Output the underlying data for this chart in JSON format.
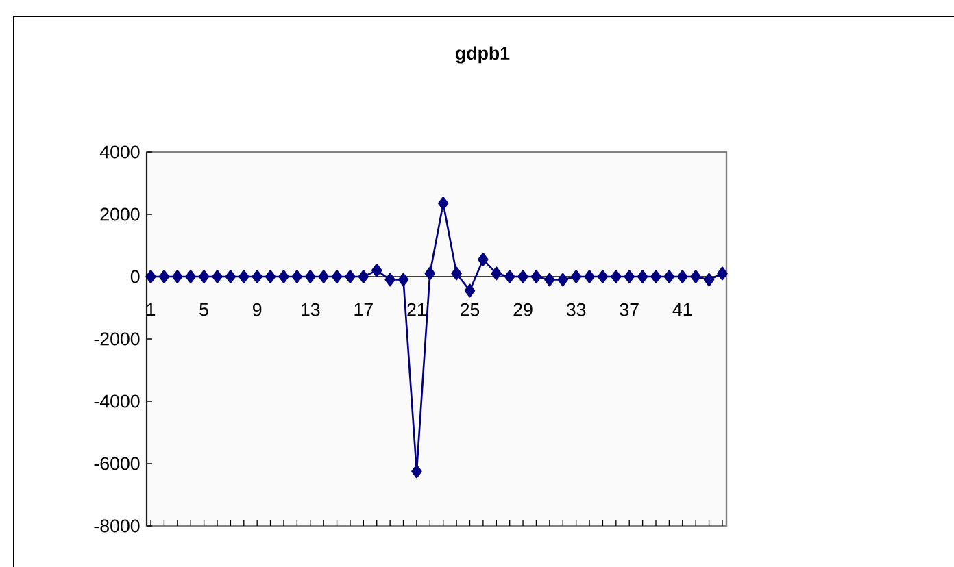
{
  "chart_data": {
    "type": "line",
    "title": "gdpb1",
    "categories": [
      "1",
      null,
      null,
      null,
      "5",
      null,
      null,
      null,
      "9",
      null,
      null,
      null,
      "13",
      null,
      null,
      null,
      "17",
      null,
      null,
      null,
      "21",
      null,
      null,
      null,
      "25",
      null,
      null,
      null,
      "29",
      null,
      null,
      null,
      "33",
      null,
      null,
      null,
      "37",
      null,
      null,
      null,
      "41",
      null,
      null,
      null
    ],
    "values": [
      0,
      0,
      0,
      0,
      0,
      0,
      0,
      0,
      0,
      0,
      0,
      0,
      0,
      0,
      0,
      0,
      0,
      200,
      -100,
      -100,
      -6250,
      100,
      2350,
      100,
      -450,
      550,
      100,
      0,
      0,
      0,
      -100,
      -100,
      0,
      0,
      0,
      0,
      0,
      0,
      0,
      0,
      0,
      0,
      -100,
      100
    ],
    "color": "#000080",
    "ylim": [
      -8000,
      4000
    ],
    "yticks": [
      -8000,
      -6000,
      -4000,
      -2000,
      0,
      2000,
      4000
    ],
    "marker": "diamond",
    "line_style": "solid"
  }
}
